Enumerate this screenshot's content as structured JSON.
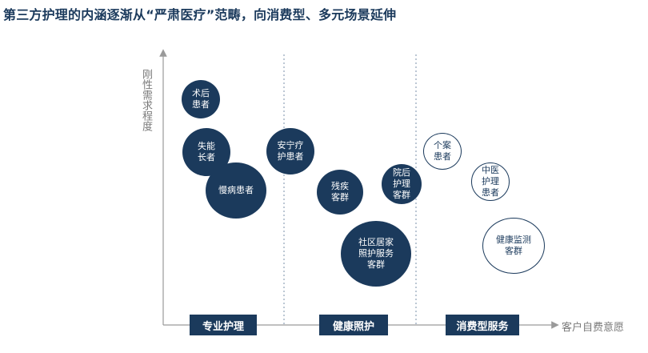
{
  "title": "第三方护理的内涵逐渐从“严肃医疗”范畴，向消费型、多元场景延伸",
  "y_axis_label": "刚性需求程度",
  "x_axis_label": "客户自费意愿",
  "categories": [
    {
      "label": "专业护理"
    },
    {
      "label": "健康照护"
    },
    {
      "label": "消费型服务"
    }
  ],
  "bubbles": [
    {
      "label": "术后\n患者",
      "style": "filled"
    },
    {
      "label": "失能\n长者",
      "style": "filled"
    },
    {
      "label": "慢病患者",
      "style": "filled"
    },
    {
      "label": "安宁疗\n护患者",
      "style": "filled"
    },
    {
      "label": "残疾\n客群",
      "style": "filled"
    },
    {
      "label": "院后\n护理\n客群",
      "style": "filled"
    },
    {
      "label": "社区居家\n照护服务\n客群",
      "style": "filled"
    },
    {
      "label": "个案\n患者",
      "style": "outline"
    },
    {
      "label": "中医\n护理\n患者",
      "style": "outline"
    },
    {
      "label": "健康监测\n客群",
      "style": "outline"
    }
  ],
  "colors": {
    "primary": "#1b3a5c",
    "axis_text": "#7a7a7a"
  }
}
